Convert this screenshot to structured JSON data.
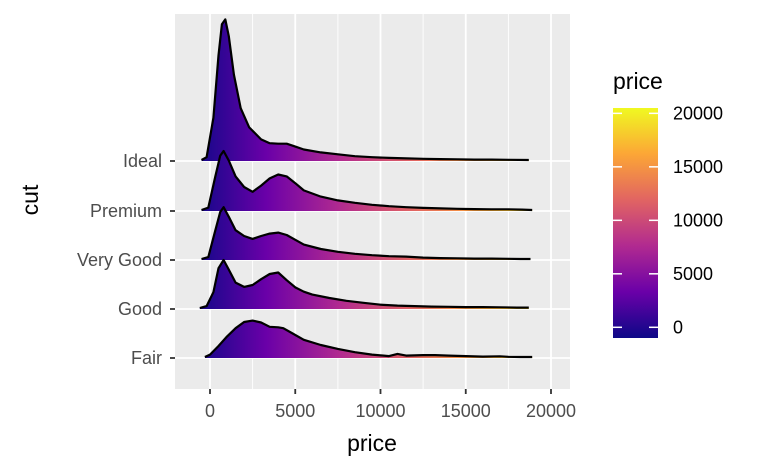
{
  "chart_data": {
    "type": "ridgeline",
    "xlabel": "price",
    "ylabel": "cut",
    "xlim": [
      -2000,
      20800
    ],
    "x_ticks": [
      0,
      5000,
      10000,
      15000,
      20000
    ],
    "x_tick_labels": [
      "0",
      "5000",
      "10000",
      "15000",
      "20000"
    ],
    "categories": [
      "Fair",
      "Good",
      "Very Good",
      "Premium",
      "Ideal"
    ],
    "fill_by": "price",
    "grid": true,
    "legend": {
      "title": "price",
      "placement": "right",
      "type": "colorbar",
      "range": [
        -1000,
        20500
      ],
      "ticks": [
        0,
        5000,
        10000,
        15000,
        20000
      ],
      "tick_labels": [
        "0",
        "5000",
        "10000",
        "15000",
        "20000"
      ],
      "colors": [
        "#0d0887",
        "#6a00a8",
        "#b12a90",
        "#e16462",
        "#fca636",
        "#f0f921"
      ]
    },
    "series": [
      {
        "name": "Fair",
        "range": [
          -300,
          18900
        ],
        "points": [
          [
            -300,
            0.02
          ],
          [
            0,
            0.07
          ],
          [
            500,
            0.25
          ],
          [
            1000,
            0.45
          ],
          [
            1500,
            0.62
          ],
          [
            2000,
            0.75
          ],
          [
            2500,
            0.78
          ],
          [
            3000,
            0.74
          ],
          [
            3500,
            0.65
          ],
          [
            4000,
            0.64
          ],
          [
            4300,
            0.62
          ],
          [
            4800,
            0.52
          ],
          [
            5500,
            0.38
          ],
          [
            6500,
            0.27
          ],
          [
            7500,
            0.19
          ],
          [
            8500,
            0.12
          ],
          [
            9500,
            0.07
          ],
          [
            10500,
            0.04
          ],
          [
            11000,
            0.085
          ],
          [
            11500,
            0.05
          ],
          [
            12500,
            0.06
          ],
          [
            13200,
            0.06
          ],
          [
            14000,
            0.05
          ],
          [
            15000,
            0.04
          ],
          [
            16000,
            0.03
          ],
          [
            17000,
            0.035
          ],
          [
            17500,
            0.025
          ],
          [
            18200,
            0.02
          ],
          [
            18900,
            0.02
          ]
        ]
      },
      {
        "name": "Good",
        "range": [
          -600,
          18700
        ],
        "points": [
          [
            -600,
            0.02
          ],
          [
            -200,
            0.06
          ],
          [
            200,
            0.35
          ],
          [
            500,
            0.85
          ],
          [
            800,
            1.02
          ],
          [
            1100,
            0.82
          ],
          [
            1500,
            0.55
          ],
          [
            2000,
            0.46
          ],
          [
            2500,
            0.5
          ],
          [
            3000,
            0.62
          ],
          [
            3500,
            0.73
          ],
          [
            4000,
            0.76
          ],
          [
            4500,
            0.6
          ],
          [
            5000,
            0.45
          ],
          [
            5500,
            0.36
          ],
          [
            6000,
            0.3
          ],
          [
            7000,
            0.23
          ],
          [
            8000,
            0.17
          ],
          [
            9000,
            0.13
          ],
          [
            10000,
            0.09
          ],
          [
            11000,
            0.07
          ],
          [
            12000,
            0.06
          ],
          [
            13000,
            0.05
          ],
          [
            14000,
            0.045
          ],
          [
            15000,
            0.04
          ],
          [
            16000,
            0.04
          ],
          [
            17000,
            0.035
          ],
          [
            18000,
            0.03
          ],
          [
            18700,
            0.03
          ]
        ]
      },
      {
        "name": "Very Good",
        "range": [
          -500,
          18800
        ],
        "points": [
          [
            -500,
            0.02
          ],
          [
            -100,
            0.06
          ],
          [
            300,
            0.6
          ],
          [
            600,
            1.0
          ],
          [
            800,
            1.1
          ],
          [
            1100,
            0.9
          ],
          [
            1500,
            0.62
          ],
          [
            2000,
            0.5
          ],
          [
            2500,
            0.44
          ],
          [
            3000,
            0.5
          ],
          [
            3500,
            0.55
          ],
          [
            4000,
            0.57
          ],
          [
            4500,
            0.52
          ],
          [
            5000,
            0.42
          ],
          [
            5500,
            0.32
          ],
          [
            6500,
            0.23
          ],
          [
            7500,
            0.17
          ],
          [
            8500,
            0.13
          ],
          [
            9500,
            0.1
          ],
          [
            10500,
            0.08
          ],
          [
            11500,
            0.07
          ],
          [
            12500,
            0.05
          ],
          [
            13500,
            0.04
          ],
          [
            14500,
            0.035
          ],
          [
            15500,
            0.03
          ],
          [
            16500,
            0.03
          ],
          [
            17500,
            0.025
          ],
          [
            18200,
            0.02
          ],
          [
            18800,
            0.02
          ]
        ]
      },
      {
        "name": "Premium",
        "range": [
          -500,
          18900
        ],
        "points": [
          [
            -500,
            0.02
          ],
          [
            -100,
            0.07
          ],
          [
            300,
            0.7
          ],
          [
            600,
            1.15
          ],
          [
            800,
            1.25
          ],
          [
            1100,
            1.05
          ],
          [
            1500,
            0.72
          ],
          [
            2000,
            0.5
          ],
          [
            2500,
            0.4
          ],
          [
            3000,
            0.53
          ],
          [
            3500,
            0.68
          ],
          [
            4000,
            0.76
          ],
          [
            4500,
            0.72
          ],
          [
            5000,
            0.58
          ],
          [
            5500,
            0.43
          ],
          [
            6500,
            0.3
          ],
          [
            7500,
            0.22
          ],
          [
            8500,
            0.17
          ],
          [
            9500,
            0.13
          ],
          [
            10500,
            0.1
          ],
          [
            11500,
            0.08
          ],
          [
            12500,
            0.065
          ],
          [
            13500,
            0.055
          ],
          [
            14500,
            0.045
          ],
          [
            15500,
            0.04
          ],
          [
            16500,
            0.035
          ],
          [
            17500,
            0.035
          ],
          [
            18300,
            0.03
          ],
          [
            18900,
            0.02
          ]
        ]
      },
      {
        "name": "Ideal",
        "range": [
          -500,
          18700
        ],
        "points": [
          [
            -500,
            0.02
          ],
          [
            -200,
            0.08
          ],
          [
            200,
            0.9
          ],
          [
            500,
            2.2
          ],
          [
            700,
            2.85
          ],
          [
            900,
            2.95
          ],
          [
            1100,
            2.6
          ],
          [
            1400,
            1.8
          ],
          [
            1800,
            1.1
          ],
          [
            2300,
            0.7
          ],
          [
            3000,
            0.45
          ],
          [
            3500,
            0.37
          ],
          [
            4000,
            0.36
          ],
          [
            4500,
            0.36
          ],
          [
            5000,
            0.3
          ],
          [
            5500,
            0.24
          ],
          [
            6500,
            0.18
          ],
          [
            7500,
            0.14
          ],
          [
            8500,
            0.1
          ],
          [
            9500,
            0.08
          ],
          [
            10500,
            0.065
          ],
          [
            11500,
            0.055
          ],
          [
            12500,
            0.045
          ],
          [
            13500,
            0.04
          ],
          [
            14500,
            0.035
          ],
          [
            15500,
            0.03
          ],
          [
            16500,
            0.03
          ],
          [
            17500,
            0.025
          ],
          [
            18700,
            0.02
          ]
        ]
      }
    ]
  }
}
